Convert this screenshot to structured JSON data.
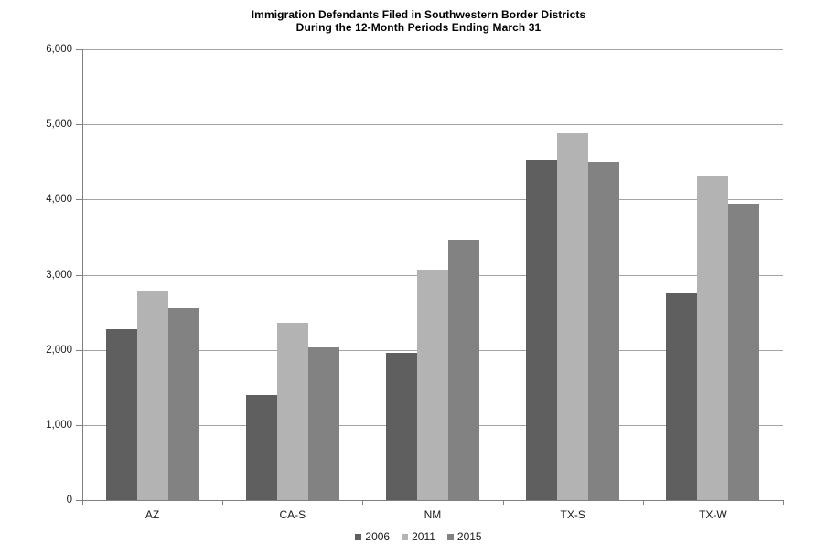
{
  "chart": {
    "title": "Immigration Defendants Filed in Southwestern Border Districts",
    "subtitle": "During the 12-Month Periods Ending March 31"
  },
  "chart_data": {
    "type": "bar",
    "title": "Immigration Defendants Filed in Southwestern Border Districts",
    "subtitle": "During the 12-Month Periods Ending March 31",
    "categories": [
      "AZ",
      "CA-S",
      "NM",
      "TX-S",
      "TX-W"
    ],
    "series": [
      {
        "name": "2006",
        "color": "#5f5f5f",
        "values": [
          2280,
          1400,
          1960,
          4530,
          2750
        ]
      },
      {
        "name": "2011",
        "color": "#b3b3b3",
        "values": [
          2790,
          2360,
          3070,
          4880,
          4320
        ]
      },
      {
        "name": "2015",
        "color": "#828282",
        "values": [
          2560,
          2030,
          3470,
          4500,
          3940
        ]
      }
    ],
    "xlabel": "",
    "ylabel": "",
    "ylim": [
      0,
      6000
    ],
    "ytick_step": 1000,
    "ytick_labels": [
      "0",
      "1,000",
      "2,000",
      "3,000",
      "4,000",
      "5,000",
      "6,000"
    ],
    "grid": "horizontal",
    "grid_color": "#a3a3a3",
    "axis_color": "#808080",
    "legend_position": "bottom"
  }
}
